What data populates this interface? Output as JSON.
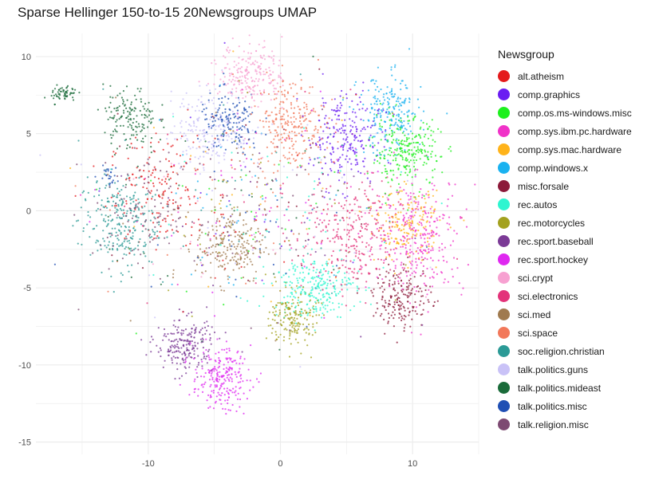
{
  "chart_data": {
    "type": "scatter",
    "title": "Sparse Hellinger 150-to-15 20Newsgroups UMAP",
    "xlabel": "",
    "ylabel": "",
    "xlim": [
      -18.5,
      15
    ],
    "ylim": [
      -15.8,
      11.5
    ],
    "x_ticks": [
      -10,
      0,
      10
    ],
    "y_ticks": [
      10,
      5,
      0,
      -5,
      -10,
      -15
    ],
    "grid": true,
    "legend_title": "Newsgroup",
    "legend_position": "right",
    "series": [
      {
        "name": "alt.atheism",
        "color": "#e41a1c",
        "clusters": [
          {
            "cx": -9.0,
            "cy": 1.2,
            "sx": 2.0,
            "sy": 1.8,
            "n": 160
          }
        ]
      },
      {
        "name": "comp.graphics",
        "color": "#6a1cf2",
        "clusters": [
          {
            "cx": 4.8,
            "cy": 4.8,
            "sx": 1.3,
            "sy": 1.5,
            "n": 230
          }
        ]
      },
      {
        "name": "comp.os.ms-windows.misc",
        "color": "#1ef01e",
        "clusters": [
          {
            "cx": 9.5,
            "cy": 3.8,
            "sx": 1.3,
            "sy": 1.1,
            "n": 260
          }
        ]
      },
      {
        "name": "comp.sys.ibm.pc.hardware",
        "color": "#f032c8",
        "clusters": [
          {
            "cx": 10.5,
            "cy": -1.6,
            "sx": 1.7,
            "sy": 1.9,
            "n": 300
          }
        ]
      },
      {
        "name": "comp.sys.mac.hardware",
        "color": "#ffb31a",
        "clusters": [
          {
            "cx": 9.6,
            "cy": -1.0,
            "sx": 1.2,
            "sy": 1.1,
            "n": 170
          }
        ]
      },
      {
        "name": "comp.windows.x",
        "color": "#1ab2f0",
        "clusters": [
          {
            "cx": 8.3,
            "cy": 6.2,
            "sx": 1.2,
            "sy": 1.3,
            "n": 210
          }
        ]
      },
      {
        "name": "misc.forsale",
        "color": "#8c1a3a",
        "clusters": [
          {
            "cx": 9.2,
            "cy": -5.6,
            "sx": 1.1,
            "sy": 1.0,
            "n": 190
          }
        ]
      },
      {
        "name": "rec.autos",
        "color": "#2ef5d0",
        "clusters": [
          {
            "cx": 2.5,
            "cy": -4.9,
            "sx": 1.6,
            "sy": 1.0,
            "n": 260
          }
        ]
      },
      {
        "name": "rec.motorcycles",
        "color": "#a3a11f",
        "clusters": [
          {
            "cx": 1.0,
            "cy": -7.0,
            "sx": 0.9,
            "sy": 0.9,
            "n": 180
          }
        ]
      },
      {
        "name": "rec.sport.baseball",
        "color": "#7b3a96",
        "clusters": [
          {
            "cx": -7.2,
            "cy": -8.7,
            "sx": 1.1,
            "sy": 0.9,
            "n": 210
          }
        ]
      },
      {
        "name": "rec.sport.hockey",
        "color": "#df28f0",
        "clusters": [
          {
            "cx": -4.5,
            "cy": -10.9,
            "sx": 1.1,
            "sy": 1.0,
            "n": 230
          }
        ]
      },
      {
        "name": "sci.crypt",
        "color": "#f7a1d1",
        "clusters": [
          {
            "cx": -2.2,
            "cy": 8.9,
            "sx": 1.2,
            "sy": 1.0,
            "n": 220
          }
        ]
      },
      {
        "name": "sci.electronics",
        "color": "#e3337a",
        "clusters": [
          {
            "cx": 5.5,
            "cy": -1.8,
            "sx": 1.8,
            "sy": 1.8,
            "n": 260
          }
        ]
      },
      {
        "name": "sci.med",
        "color": "#a07a4f",
        "clusters": [
          {
            "cx": -3.8,
            "cy": -2.3,
            "sx": 1.3,
            "sy": 1.2,
            "n": 210
          }
        ]
      },
      {
        "name": "sci.space",
        "color": "#f2785a",
        "clusters": [
          {
            "cx": 0.8,
            "cy": 5.7,
            "sx": 1.3,
            "sy": 1.5,
            "n": 250
          }
        ]
      },
      {
        "name": "soc.religion.christian",
        "color": "#2b9a96",
        "clusters": [
          {
            "cx": -12.3,
            "cy": -0.8,
            "sx": 1.5,
            "sy": 1.5,
            "n": 260
          }
        ]
      },
      {
        "name": "talk.politics.guns",
        "color": "#c9c2f7",
        "clusters": [
          {
            "cx": -5.3,
            "cy": 5.3,
            "sx": 1.5,
            "sy": 1.3,
            "n": 200
          }
        ]
      },
      {
        "name": "talk.politics.mideast",
        "color": "#1a6b3a",
        "clusters": [
          {
            "cx": -11.4,
            "cy": 6.0,
            "sx": 1.0,
            "sy": 1.0,
            "n": 150
          },
          {
            "cx": -16.4,
            "cy": 7.6,
            "sx": 0.5,
            "sy": 0.3,
            "n": 60
          }
        ]
      },
      {
        "name": "talk.politics.misc",
        "color": "#1f4fb4",
        "clusters": [
          {
            "cx": -3.8,
            "cy": 5.6,
            "sx": 1.2,
            "sy": 1.0,
            "n": 150
          },
          {
            "cx": -13.0,
            "cy": 2.3,
            "sx": 0.4,
            "sy": 0.3,
            "n": 25
          }
        ]
      },
      {
        "name": "talk.religion.misc",
        "color": "#7d4a72",
        "clusters": [
          {
            "cx": -10.0,
            "cy": 0.0,
            "sx": 2.0,
            "sy": 1.6,
            "n": 110
          }
        ]
      }
    ]
  }
}
